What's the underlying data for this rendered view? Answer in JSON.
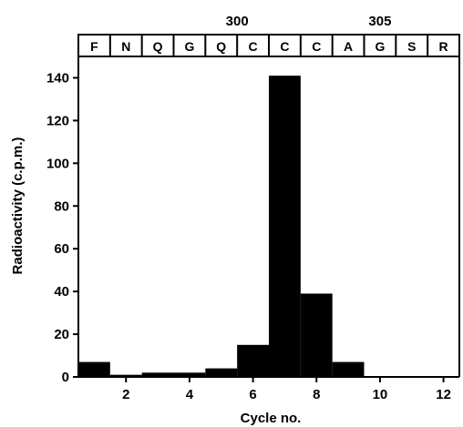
{
  "chart_data": {
    "type": "bar",
    "title": "",
    "xlabel": "Cycle no.",
    "ylabel": "Radioactivity (c.p.m.)",
    "xlim": [
      0.5,
      12.5
    ],
    "ylim": [
      0,
      150
    ],
    "x_ticks": [
      2,
      4,
      6,
      8,
      10,
      12
    ],
    "y_ticks": [
      0,
      20,
      40,
      60,
      80,
      100,
      120,
      140
    ],
    "categories": [
      1,
      2,
      3,
      4,
      5,
      6,
      7,
      8,
      9,
      10,
      11,
      12
    ],
    "values": [
      7,
      1,
      2,
      2,
      4,
      15,
      141,
      39,
      7,
      0,
      0,
      0
    ],
    "bar_color": "#000000",
    "grid": false,
    "residues": [
      "F",
      "N",
      "Q",
      "G",
      "Q",
      "C",
      "C",
      "C",
      "A",
      "G",
      "S",
      "R"
    ],
    "residue_numbers": [
      {
        "label": "300",
        "cycle": 5.5
      },
      {
        "label": "305",
        "cycle": 10
      }
    ]
  }
}
